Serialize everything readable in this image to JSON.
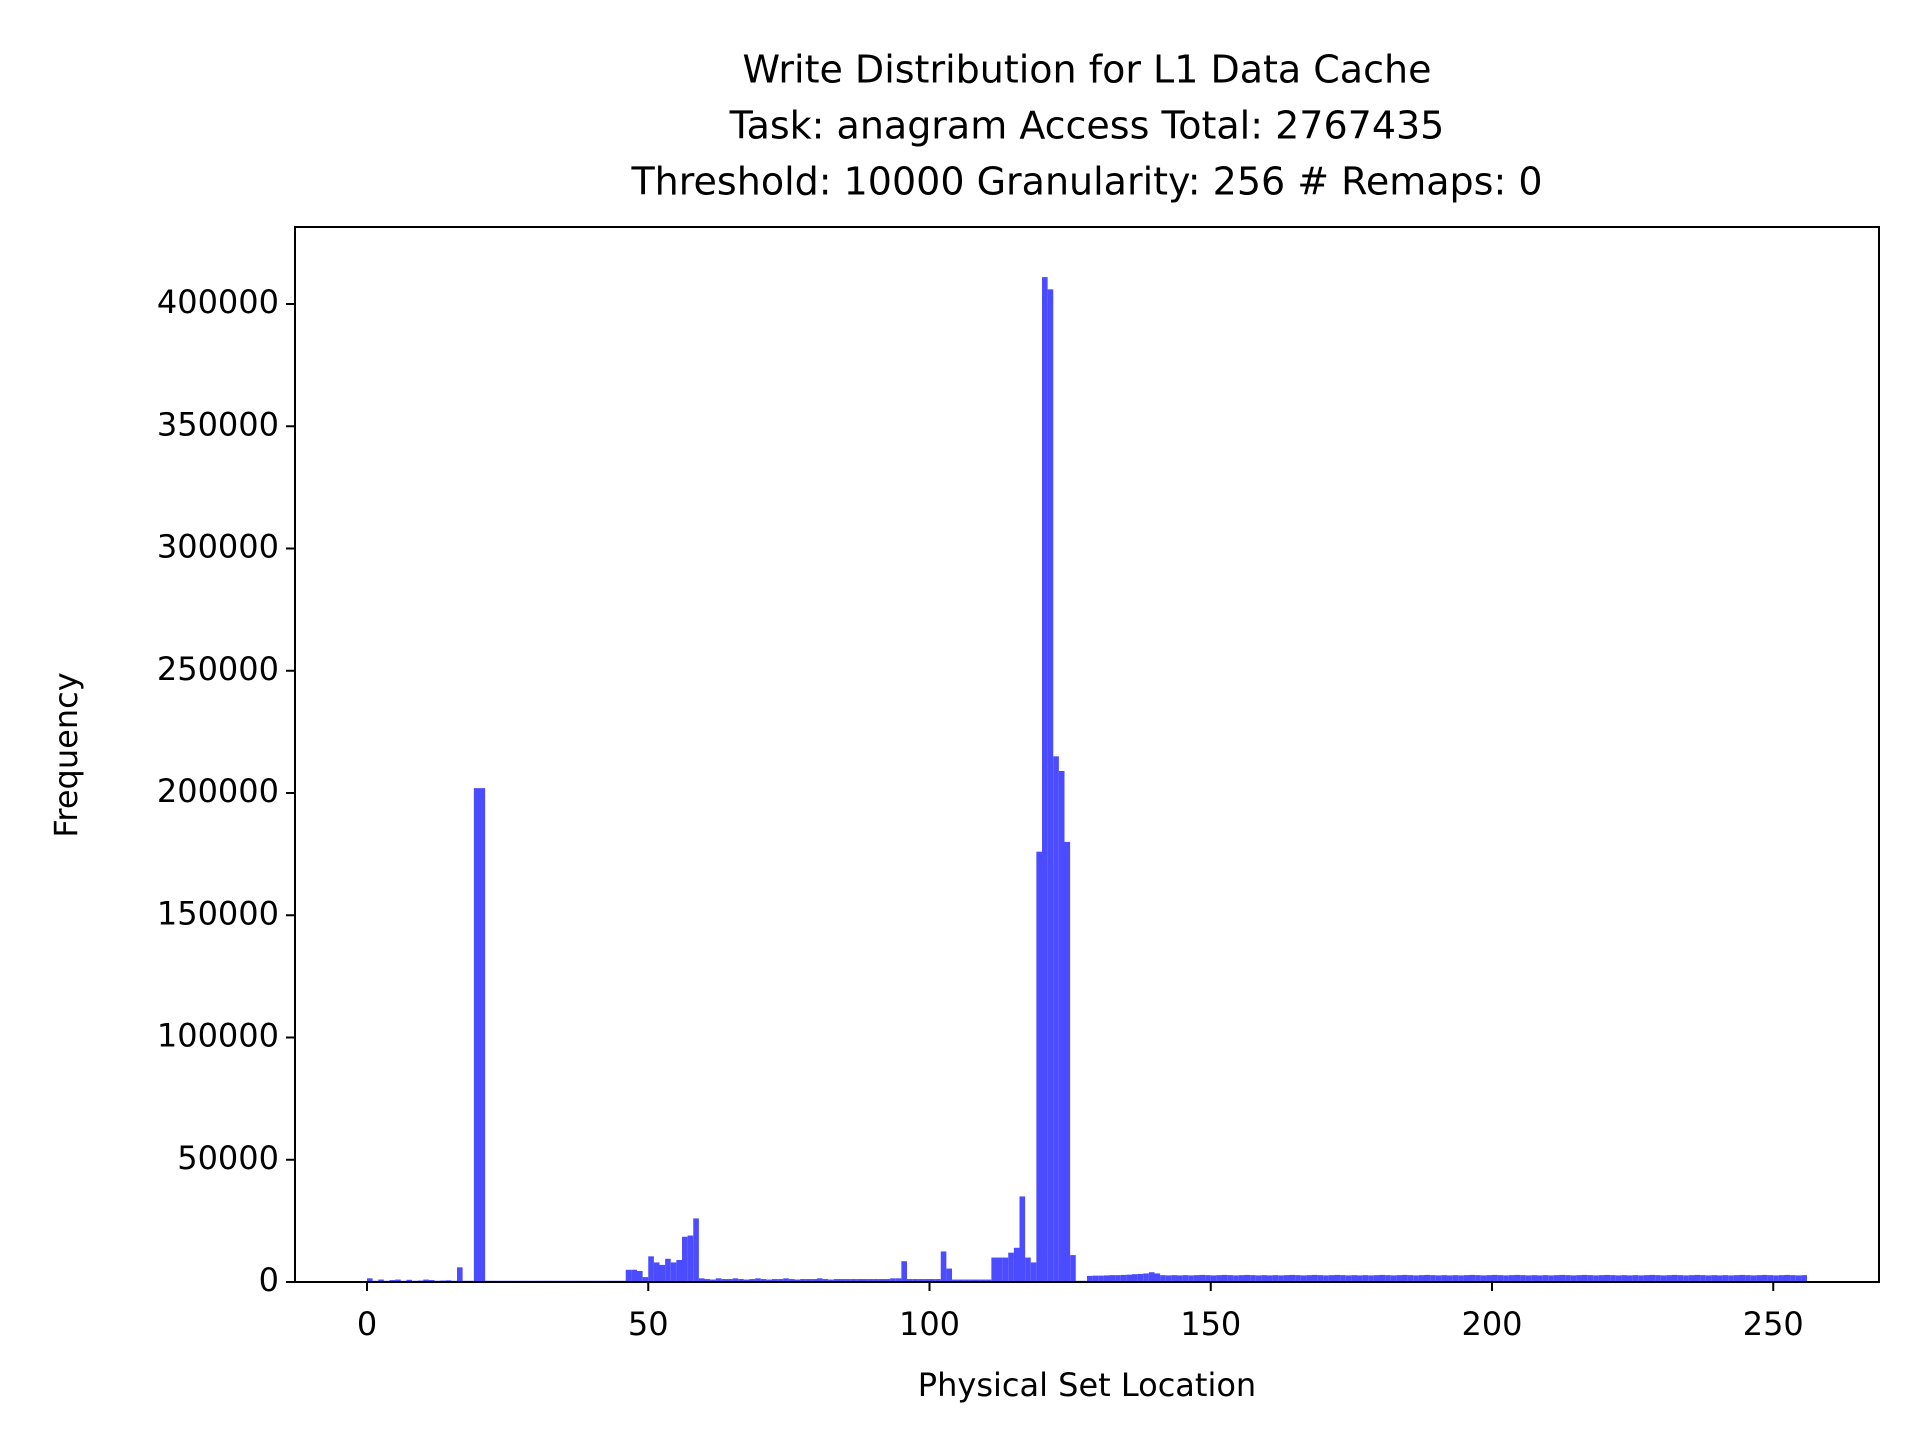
{
  "chart_data": {
    "type": "histogram",
    "title": [
      "Write Distribution for L1 Data Cache",
      "Task: anagram Access Total: 2767435",
      "Threshold: 10000 Granularity: 256 # Remaps: 0"
    ],
    "xlabel": "Physical Set Location",
    "ylabel": "Frequency",
    "color": "#4b4bff",
    "xlim": [
      -12.8,
      268.8
    ],
    "ylim": [
      0,
      431500
    ],
    "xticks": [
      0,
      50,
      100,
      150,
      200,
      250
    ],
    "yticks": [
      0,
      50000,
      100000,
      150000,
      200000,
      250000,
      300000,
      350000,
      400000
    ],
    "bins": [
      0,
      1,
      2,
      3,
      4,
      5,
      6,
      7,
      8,
      9,
      10,
      11,
      12,
      13,
      14,
      15,
      16,
      17,
      18,
      19,
      20,
      21,
      22,
      23,
      24,
      25,
      26,
      27,
      28,
      29,
      30,
      31,
      32,
      33,
      34,
      35,
      36,
      37,
      38,
      39,
      40,
      41,
      42,
      43,
      44,
      45,
      46,
      47,
      48,
      49,
      50,
      51,
      52,
      53,
      54,
      55,
      56,
      57,
      58,
      59,
      60,
      61,
      62,
      63,
      64,
      65,
      66,
      67,
      68,
      69,
      70,
      71,
      72,
      73,
      74,
      75,
      76,
      77,
      78,
      79,
      80,
      81,
      82,
      83,
      84,
      85,
      86,
      87,
      88,
      89,
      90,
      91,
      92,
      93,
      94,
      95,
      96,
      97,
      98,
      99,
      100,
      101,
      102,
      103,
      104,
      105,
      106,
      107,
      108,
      109,
      110,
      111,
      112,
      113,
      114,
      115,
      116,
      117,
      118,
      119,
      120,
      121,
      122,
      123,
      124,
      125,
      126,
      127,
      128,
      129,
      130,
      131,
      132,
      133,
      134,
      135,
      136,
      137,
      138,
      139,
      140,
      141,
      142,
      143,
      144,
      145,
      146,
      147,
      148,
      149,
      150,
      151,
      152,
      153,
      154,
      155,
      156,
      157,
      158,
      159,
      160,
      161,
      162,
      163,
      164,
      165,
      166,
      167,
      168,
      169,
      170,
      171,
      172,
      173,
      174,
      175,
      176,
      177,
      178,
      179,
      180,
      181,
      182,
      183,
      184,
      185,
      186,
      187,
      188,
      189,
      190,
      191,
      192,
      193,
      194,
      195,
      196,
      197,
      198,
      199,
      200,
      201,
      202,
      203,
      204,
      205,
      206,
      207,
      208,
      209,
      210,
      211,
      212,
      213,
      214,
      215,
      216,
      217,
      218,
      219,
      220,
      221,
      222,
      223,
      224,
      225,
      226,
      227,
      228,
      229,
      230,
      231,
      232,
      233,
      234,
      235,
      236,
      237,
      238,
      239,
      240,
      241,
      242,
      243,
      244,
      245,
      246,
      247,
      248,
      249,
      250,
      251,
      252,
      253,
      254,
      255,
      256
    ],
    "counts": [
      1500,
      500,
      1000,
      500,
      800,
      1000,
      500,
      900,
      500,
      600,
      1000,
      800,
      500,
      600,
      700,
      500,
      6000,
      500,
      500,
      202000,
      202000,
      500,
      500,
      500,
      500,
      500,
      500,
      500,
      500,
      500,
      500,
      500,
      500,
      500,
      500,
      500,
      500,
      500,
      500,
      500,
      500,
      500,
      500,
      500,
      500,
      500,
      5000,
      5000,
      4500,
      2000,
      10500,
      8000,
      7000,
      9500,
      8000,
      9000,
      18500,
      19000,
      26000,
      1500,
      1200,
      1000,
      1500,
      1200,
      1200,
      1500,
      1200,
      1000,
      1200,
      1500,
      1200,
      1000,
      1200,
      1200,
      1500,
      1200,
      1000,
      1200,
      1200,
      1200,
      1500,
      1200,
      1000,
      1200,
      1200,
      1200,
      1200,
      1200,
      1200,
      1200,
      1200,
      1200,
      1200,
      1500,
      1500,
      8500,
      1200,
      1200,
      1200,
      1200,
      1200,
      1200,
      12500,
      5500,
      1000,
      1000,
      1000,
      1000,
      1000,
      1000,
      1000,
      10000,
      10000,
      10000,
      12000,
      14000,
      35000,
      10000,
      8000,
      176000,
      411000,
      406000,
      215000,
      209000,
      180000,
      11000,
      500,
      500,
      2500,
      2600,
      2600,
      2700,
      2800,
      2800,
      2900,
      3000,
      3200,
      3300,
      3500,
      4000,
      3500,
      2800,
      2700,
      2800,
      2700,
      2800,
      2700,
      2800,
      2900,
      2800,
      2700,
      2800,
      2900,
      2800,
      2700,
      2800,
      2900,
      2800,
      2700,
      2800,
      2700,
      2800,
      2700,
      2800,
      2900,
      2800,
      2700,
      2800,
      2900,
      2800,
      2700,
      2800,
      2900,
      2800,
      2700,
      2800,
      2700,
      2800,
      2700,
      2800,
      2900,
      2800,
      2700,
      2800,
      2900,
      2800,
      2700,
      2800,
      2900,
      2800,
      2700,
      2800,
      2700,
      2800,
      2700,
      2800,
      2900,
      2800,
      2700,
      2800,
      2900,
      2800,
      2700,
      2800,
      2900,
      2800,
      2700,
      2800,
      2700,
      2800,
      2700,
      2800,
      2900,
      2800,
      2700,
      2800,
      2900,
      2800,
      2700,
      2800,
      2900,
      2800,
      2700,
      2800,
      2700,
      2800,
      2700,
      2800,
      2900,
      2800,
      2700,
      2800,
      2900,
      2800,
      2700,
      2800,
      2900,
      2800,
      2700,
      2800,
      2700,
      2800,
      2700,
      2800,
      2900,
      2800,
      2700,
      2800,
      2900,
      2800,
      2700,
      2800,
      2900,
      2800,
      2700,
      2800
    ]
  }
}
